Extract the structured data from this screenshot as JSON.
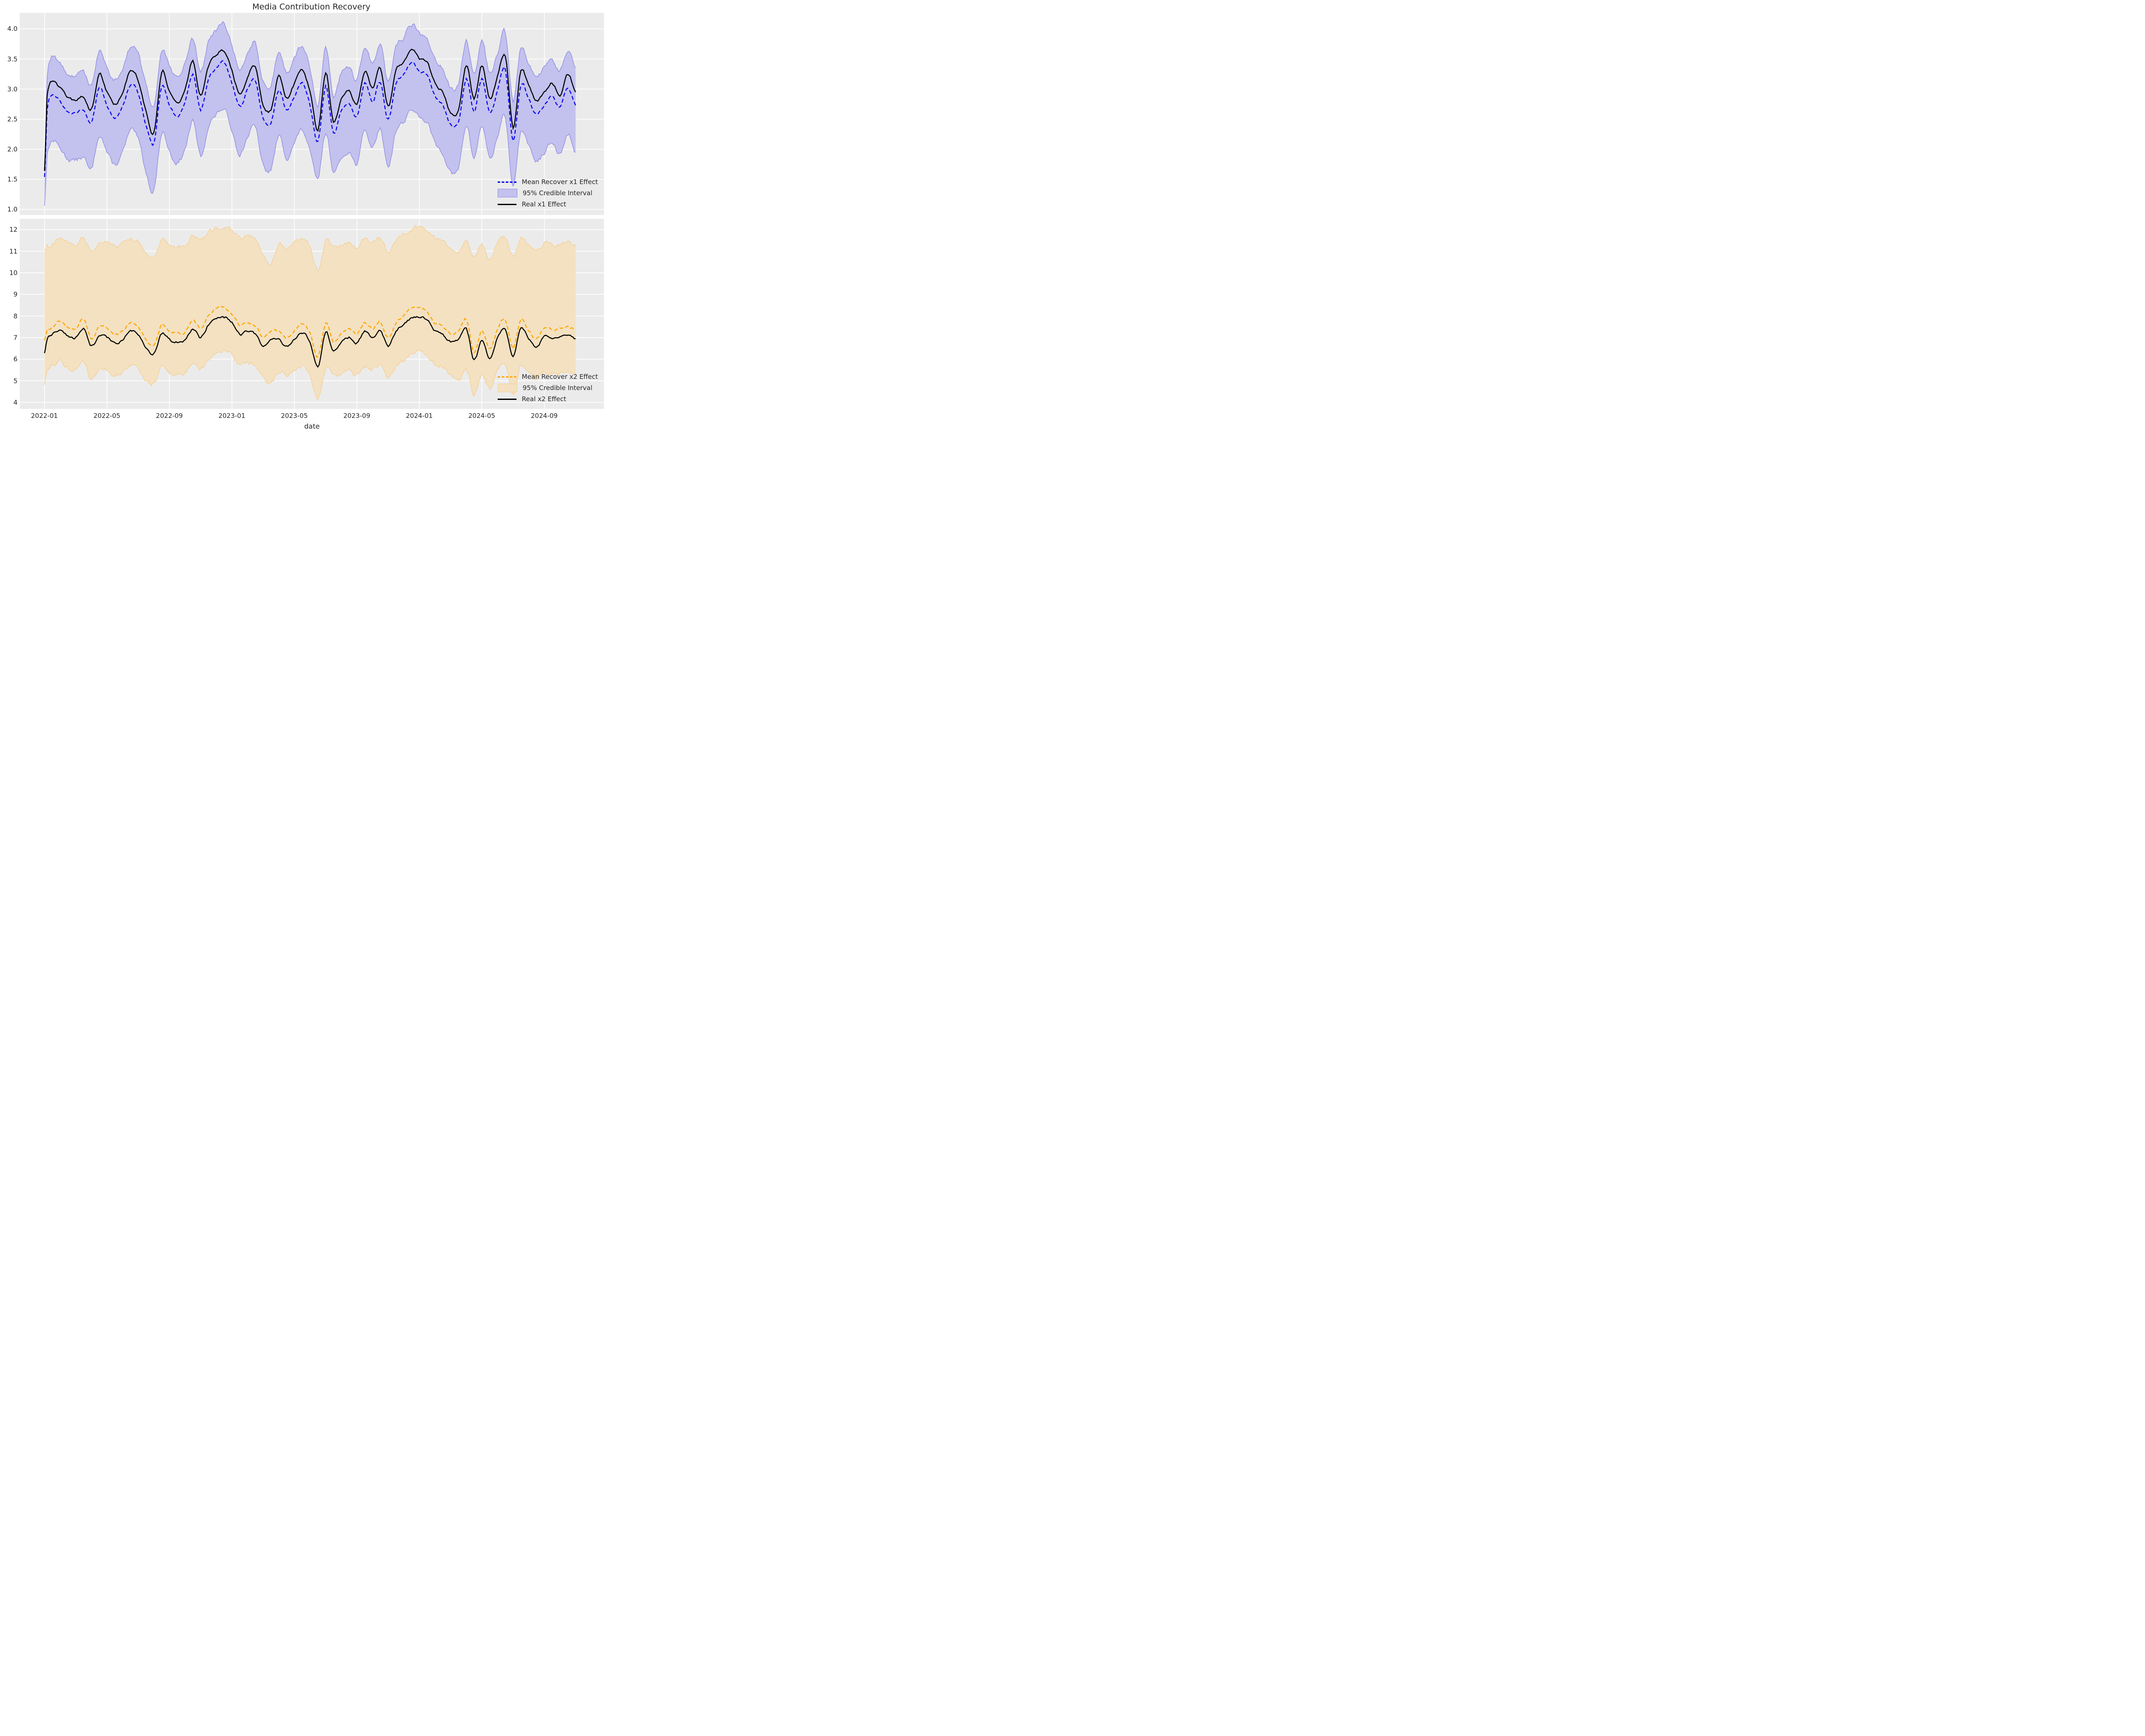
{
  "title": "Media Contribution Recovery",
  "colors": {
    "figure_background": "#ffffff",
    "axes_background": "#ebebeb",
    "grid": "#ffffff",
    "text": "#262626",
    "x1_mean_line": "#0202f0",
    "x1_band_fill": "#c3c1ee",
    "x1_band_edge": "#908de2",
    "x2_mean_line": "#ffa500",
    "x2_band_fill": "#f3e1c1",
    "x2_band_edge": "#f6cf96",
    "real_line": "#000000"
  },
  "x_axis": {
    "label": "date",
    "tick_labels": [
      "2022-01",
      "2022-05",
      "2022-09",
      "2023-01",
      "2023-05",
      "2023-09",
      "2024-01",
      "2024-05",
      "2024-09"
    ],
    "tick_months": [
      0,
      4,
      8,
      12,
      16,
      20,
      24,
      28,
      32
    ],
    "months_total": 34,
    "data_start_frac": 0.0424,
    "data_end_frac": 0.9513
  },
  "chart_data": [
    {
      "type": "line",
      "panel": "top",
      "ylabel": "",
      "ylim": [
        0.906,
        4.266
      ],
      "yticks": [
        4.0,
        3.5,
        3.0,
        2.5,
        2.0,
        1.5,
        1.0
      ],
      "ytick_labels": [
        "4.0",
        "3.5",
        "3.0",
        "2.5",
        "2.0",
        "1.5",
        "1.0"
      ],
      "grid": true,
      "legend_position": "lower right",
      "legend": [
        "Mean Recover x1 Effect",
        "95% Credible Interval",
        "Real x1 Effect"
      ],
      "x_months": [
        0,
        0.17,
        0.5,
        1,
        1.5,
        2,
        2.5,
        3,
        3.5,
        4,
        4.5,
        5,
        5.5,
        6,
        6.5,
        7,
        7.5,
        8,
        8.5,
        9,
        9.5,
        10,
        10.5,
        11,
        11.5,
        12,
        12.5,
        13,
        13.5,
        14,
        14.5,
        15,
        15.5,
        16,
        16.5,
        17,
        17.5,
        18,
        18.5,
        19,
        19.5,
        20,
        20.5,
        21,
        21.5,
        22,
        22.5,
        23,
        23.5,
        24,
        24.5,
        25,
        25.5,
        26,
        26.5,
        27,
        27.5,
        28,
        28.5,
        29,
        29.5,
        30,
        30.5,
        31,
        31.5,
        32,
        32.5,
        33,
        33.5,
        34
      ],
      "series": {
        "real": [
          1.65,
          2.88,
          3.15,
          3.02,
          2.85,
          2.82,
          2.86,
          2.66,
          3.25,
          2.95,
          2.74,
          2.95,
          3.3,
          3.15,
          2.62,
          2.26,
          3.28,
          2.96,
          2.77,
          3.0,
          3.46,
          2.88,
          3.38,
          3.56,
          3.63,
          3.3,
          2.91,
          3.2,
          3.36,
          2.72,
          2.66,
          3.22,
          2.86,
          3.1,
          3.31,
          2.95,
          2.32,
          3.28,
          2.46,
          2.85,
          2.96,
          2.76,
          3.3,
          3.02,
          3.34,
          2.71,
          3.3,
          3.45,
          3.66,
          3.5,
          3.44,
          3.1,
          2.94,
          2.62,
          2.66,
          3.4,
          2.85,
          3.4,
          2.85,
          3.2,
          3.55,
          2.36,
          3.3,
          3.05,
          2.8,
          2.95,
          3.1,
          2.9,
          3.25,
          2.95
        ],
        "mean": [
          1.55,
          2.66,
          2.92,
          2.8,
          2.62,
          2.6,
          2.64,
          2.44,
          3.02,
          2.73,
          2.52,
          2.73,
          3.08,
          2.94,
          2.4,
          2.1,
          3.05,
          2.74,
          2.55,
          2.78,
          3.24,
          2.66,
          3.16,
          3.35,
          3.44,
          3.1,
          2.7,
          2.99,
          3.14,
          2.5,
          2.45,
          3.0,
          2.64,
          2.88,
          3.1,
          2.73,
          2.12,
          3.06,
          2.25,
          2.63,
          2.74,
          2.54,
          3.08,
          2.8,
          3.12,
          2.5,
          3.08,
          3.24,
          3.45,
          3.29,
          3.22,
          2.88,
          2.72,
          2.4,
          2.45,
          3.18,
          2.63,
          3.18,
          2.63,
          2.98,
          3.33,
          2.15,
          3.08,
          2.83,
          2.58,
          2.73,
          2.88,
          2.68,
          3.03,
          2.73
        ],
        "ci_upper": [
          1.75,
          3.2,
          3.55,
          3.42,
          3.25,
          3.22,
          3.28,
          3.08,
          3.62,
          3.35,
          3.15,
          3.36,
          3.7,
          3.58,
          3.05,
          2.72,
          3.66,
          3.36,
          3.18,
          3.42,
          3.85,
          3.3,
          3.78,
          3.98,
          4.08,
          3.72,
          3.32,
          3.62,
          3.76,
          3.12,
          3.08,
          3.62,
          3.28,
          3.5,
          3.72,
          3.36,
          2.74,
          3.68,
          2.88,
          3.26,
          3.36,
          3.16,
          3.7,
          3.42,
          3.74,
          3.12,
          3.7,
          3.86,
          4.08,
          3.92,
          3.84,
          3.5,
          3.35,
          3.02,
          3.08,
          3.8,
          3.26,
          3.8,
          3.26,
          3.6,
          3.95,
          2.78,
          3.7,
          3.45,
          3.2,
          3.36,
          3.5,
          3.3,
          3.65,
          3.36
        ],
        "ci_lower": [
          1.08,
          1.9,
          2.14,
          2.02,
          1.84,
          1.82,
          1.86,
          1.66,
          2.24,
          1.95,
          1.74,
          1.95,
          2.3,
          2.16,
          1.62,
          1.32,
          2.27,
          1.96,
          1.77,
          2.0,
          2.46,
          1.88,
          2.38,
          2.57,
          2.66,
          2.32,
          1.92,
          2.21,
          2.36,
          1.72,
          1.67,
          2.22,
          1.86,
          2.1,
          2.32,
          1.95,
          1.5,
          2.28,
          1.63,
          1.85,
          1.96,
          1.76,
          2.3,
          2.02,
          2.34,
          1.72,
          2.3,
          2.46,
          2.67,
          2.51,
          2.44,
          2.1,
          1.94,
          1.62,
          1.67,
          2.4,
          1.85,
          2.4,
          1.85,
          2.2,
          2.55,
          1.37,
          2.3,
          2.05,
          1.8,
          1.95,
          2.1,
          1.9,
          2.25,
          1.95
        ]
      }
    },
    {
      "type": "line",
      "panel": "bottom",
      "ylabel": "",
      "ylim": [
        3.7,
        12.5
      ],
      "yticks": [
        12,
        11,
        10,
        9,
        8,
        7,
        6,
        5,
        4
      ],
      "ytick_labels": [
        "12",
        "11",
        "10",
        "9",
        "8",
        "7",
        "6",
        "5",
        "4"
      ],
      "grid": true,
      "legend_position": "lower right",
      "legend": [
        "Mean Recover x2 Effect",
        "95% Credible Interval",
        "Real x2 Effect"
      ],
      "x_months": [
        0,
        0.17,
        0.5,
        1,
        1.5,
        2,
        2.5,
        3,
        3.5,
        4,
        4.5,
        5,
        5.5,
        6,
        6.5,
        7,
        7.5,
        8,
        8.5,
        9,
        9.5,
        10,
        10.5,
        11,
        11.5,
        12,
        12.5,
        13,
        13.5,
        14,
        14.5,
        15,
        15.5,
        16,
        16.5,
        17,
        17.5,
        18,
        18.5,
        19,
        19.5,
        20,
        20.5,
        21,
        21.5,
        22,
        22.5,
        23,
        23.5,
        24,
        24.5,
        25,
        25.5,
        26,
        26.5,
        27,
        27.5,
        28,
        28.5,
        29,
        29.5,
        30,
        30.5,
        31,
        31.5,
        32,
        32.5,
        33,
        33.5,
        34
      ],
      "series": {
        "real": [
          6.3,
          6.95,
          7.15,
          7.35,
          7.1,
          7.0,
          7.4,
          6.6,
          7.1,
          7.0,
          6.75,
          6.9,
          7.3,
          7.1,
          6.5,
          6.25,
          7.2,
          6.9,
          6.8,
          6.85,
          7.4,
          7.0,
          7.6,
          7.9,
          7.95,
          7.7,
          7.15,
          7.3,
          7.15,
          6.6,
          6.9,
          6.9,
          6.6,
          6.9,
          7.2,
          6.8,
          5.65,
          7.25,
          6.4,
          6.8,
          7.0,
          6.75,
          7.3,
          7.0,
          7.35,
          6.6,
          7.3,
          7.6,
          7.9,
          7.95,
          7.8,
          7.3,
          7.15,
          6.8,
          6.9,
          7.45,
          5.95,
          6.9,
          6.05,
          7.0,
          7.4,
          6.1,
          7.45,
          6.95,
          6.55,
          7.05,
          7.0,
          7.0,
          7.1,
          6.95
        ],
        "mean": [
          6.9,
          7.3,
          7.5,
          7.75,
          7.45,
          7.4,
          7.85,
          6.95,
          7.5,
          7.4,
          7.15,
          7.3,
          7.7,
          7.5,
          6.9,
          6.65,
          7.6,
          7.3,
          7.2,
          7.25,
          7.8,
          7.4,
          8.0,
          8.35,
          8.4,
          8.1,
          7.55,
          7.7,
          7.55,
          7.0,
          7.3,
          7.3,
          7.0,
          7.3,
          7.6,
          7.2,
          6.1,
          7.65,
          6.8,
          7.2,
          7.4,
          7.15,
          7.7,
          7.4,
          7.75,
          7.0,
          7.7,
          8.0,
          8.35,
          8.4,
          8.2,
          7.7,
          7.55,
          7.2,
          7.3,
          7.85,
          6.35,
          7.3,
          6.45,
          7.4,
          7.8,
          6.5,
          7.85,
          7.35,
          6.95,
          7.45,
          7.4,
          7.4,
          7.5,
          7.35
        ],
        "ci_upper": [
          11.1,
          11.2,
          11.35,
          11.55,
          11.4,
          11.3,
          11.6,
          11.05,
          11.45,
          11.4,
          11.2,
          11.35,
          11.6,
          11.45,
          10.95,
          10.8,
          11.5,
          11.3,
          11.25,
          11.3,
          11.7,
          11.5,
          11.9,
          12.05,
          12.1,
          12.0,
          11.6,
          11.65,
          11.55,
          10.8,
          10.4,
          11.35,
          11.15,
          11.4,
          11.6,
          11.2,
          10.15,
          11.55,
          11.2,
          11.25,
          11.4,
          11.2,
          11.55,
          11.4,
          11.6,
          11.0,
          11.55,
          11.8,
          12.05,
          12.1,
          11.95,
          11.6,
          11.45,
          11.1,
          10.9,
          11.55,
          10.8,
          11.3,
          10.6,
          11.35,
          11.65,
          10.7,
          11.6,
          11.3,
          11.05,
          11.35,
          11.3,
          11.3,
          11.4,
          11.25
        ],
        "ci_lower": [
          4.85,
          5.5,
          5.7,
          5.9,
          5.6,
          5.5,
          5.95,
          5.05,
          5.55,
          5.5,
          5.25,
          5.4,
          5.75,
          5.55,
          5.0,
          4.85,
          5.65,
          5.4,
          5.3,
          5.35,
          5.85,
          5.55,
          6.0,
          6.3,
          6.4,
          6.2,
          5.75,
          5.8,
          5.7,
          5.1,
          4.9,
          5.45,
          5.25,
          5.5,
          5.7,
          5.3,
          4.15,
          5.6,
          5.2,
          5.3,
          5.5,
          5.25,
          5.65,
          5.5,
          5.7,
          5.1,
          5.65,
          5.95,
          6.3,
          6.4,
          6.2,
          5.8,
          5.6,
          5.25,
          5.0,
          5.6,
          4.35,
          5.35,
          4.6,
          5.45,
          5.8,
          4.4,
          5.7,
          5.35,
          5.1,
          5.4,
          5.35,
          5.35,
          5.45,
          5.3
        ]
      }
    }
  ]
}
